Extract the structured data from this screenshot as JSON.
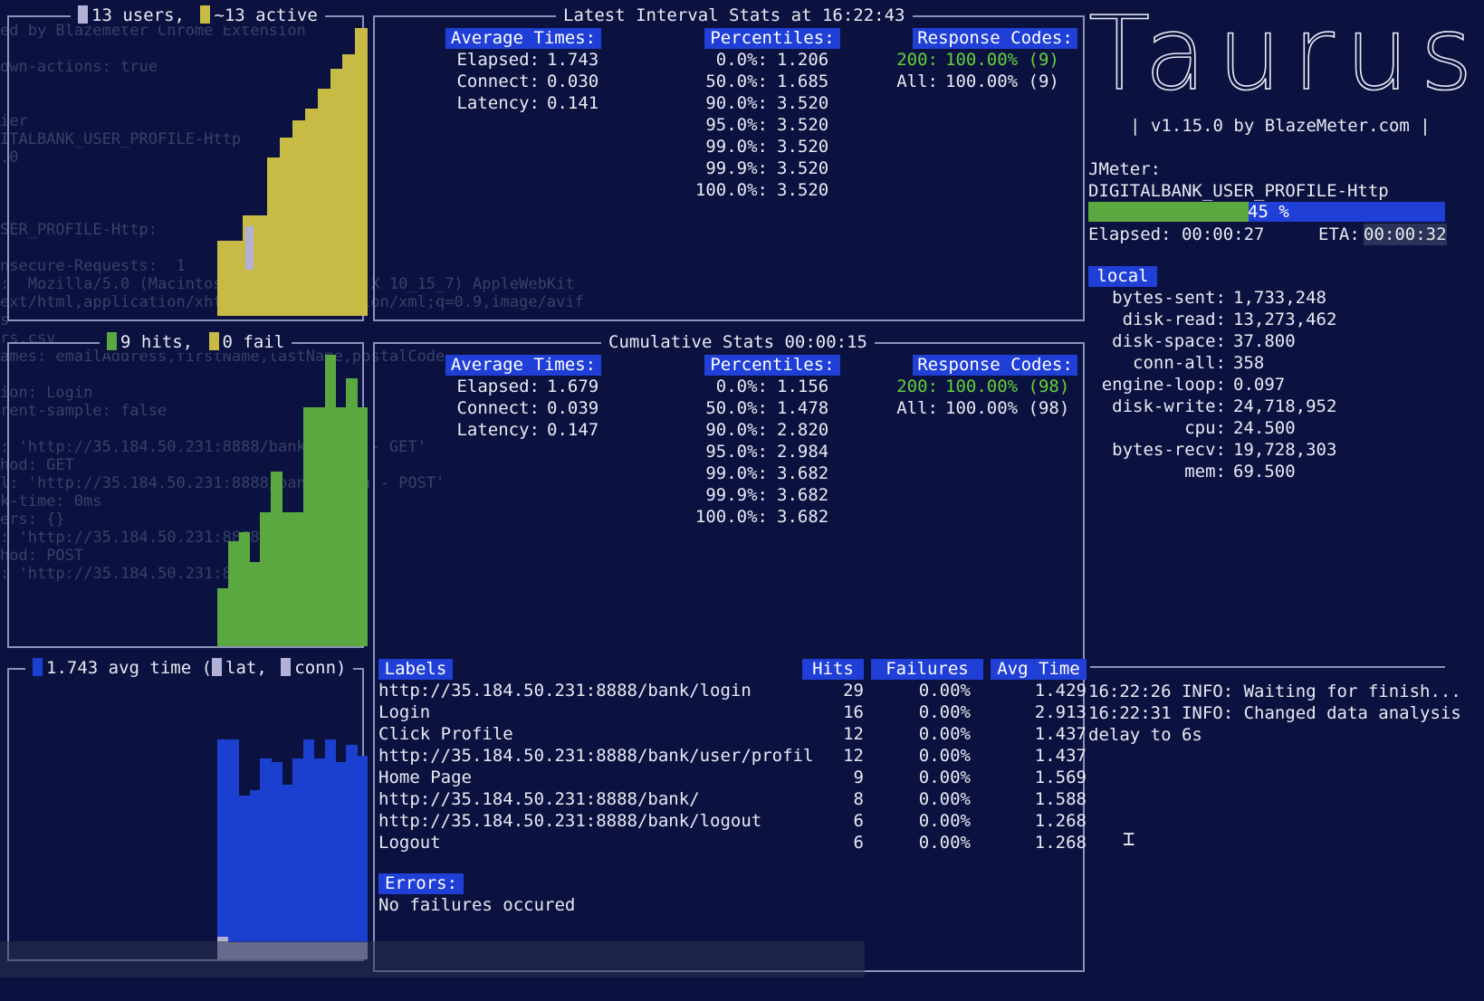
{
  "colors": {
    "users": "#c8bb45",
    "hits": "#5aa83f",
    "avg": "#1b3fce",
    "lat": "#b2b0d6",
    "accent": "#1f3fd6",
    "ok": "#62d23a"
  },
  "users_panel": {
    "title_users": "13 users,",
    "title_active": "~13 active",
    "bars": [
      {
        "level": 0.26,
        "color": "users"
      },
      {
        "level": 0.26,
        "color": "users"
      },
      {
        "level": 0.35,
        "color": "users"
      },
      {
        "level": 0.35,
        "color": "users"
      },
      {
        "level": 0.55,
        "color": "users"
      },
      {
        "level": 0.62,
        "color": "users"
      },
      {
        "level": 0.68,
        "color": "users"
      },
      {
        "level": 0.72,
        "color": "users"
      },
      {
        "level": 0.79,
        "color": "users"
      },
      {
        "level": 0.86,
        "color": "users"
      },
      {
        "level": 0.91,
        "color": "users"
      },
      {
        "level": 1.0,
        "color": "users"
      }
    ]
  },
  "hits_panel": {
    "title_hits": "9 hits,",
    "title_fail": "0 fail",
    "bars": [
      {
        "level": 0.2
      },
      {
        "level": 0.36
      },
      {
        "level": 0.39
      },
      {
        "level": 0.29
      },
      {
        "level": 0.46
      },
      {
        "level": 0.6
      },
      {
        "level": 0.46
      },
      {
        "level": 0.46
      },
      {
        "level": 0.82
      },
      {
        "level": 0.82
      },
      {
        "level": 1.0
      },
      {
        "level": 0.82
      },
      {
        "level": 0.92
      },
      {
        "level": 0.82
      }
    ]
  },
  "avg_panel": {
    "title_avg": "1.743 avg time (",
    "title_lat": "lat,",
    "title_conn": "conn)",
    "bars": [
      {
        "level": 0.78,
        "lat": 0.08
      },
      {
        "level": 0.78,
        "lat": 0.06
      },
      {
        "level": 0.58,
        "lat": 0.06
      },
      {
        "level": 0.6,
        "lat": 0.06
      },
      {
        "level": 0.71,
        "lat": 0.06
      },
      {
        "level": 0.7,
        "lat": 0.06
      },
      {
        "level": 0.62,
        "lat": 0.06
      },
      {
        "level": 0.71,
        "lat": 0.06
      },
      {
        "level": 0.78,
        "lat": 0.06
      },
      {
        "level": 0.71,
        "lat": 0.06
      },
      {
        "level": 0.78,
        "lat": 0.06
      },
      {
        "level": 0.7,
        "lat": 0.06
      },
      {
        "level": 0.76,
        "lat": 0.06
      },
      {
        "level": 0.72,
        "lat": 0.06
      }
    ]
  },
  "interval": {
    "title": "Latest Interval Stats at 16:22:43",
    "avg_header": "Average Times:",
    "pct_header": "Percentiles:",
    "codes_header": "Response Codes:",
    "avg_rows": [
      {
        "k": "Elapsed:",
        "v": "1.743"
      },
      {
        "k": "Connect:",
        "v": "0.030"
      },
      {
        "k": "Latency:",
        "v": "0.141"
      }
    ],
    "pct_rows": [
      {
        "k": "0.0%:",
        "v": "1.206"
      },
      {
        "k": "50.0%:",
        "v": "1.685"
      },
      {
        "k": "90.0%:",
        "v": "3.520"
      },
      {
        "k": "95.0%:",
        "v": "3.520"
      },
      {
        "k": "99.0%:",
        "v": "3.520"
      },
      {
        "k": "99.9%:",
        "v": "3.520"
      },
      {
        "k": "100.0%:",
        "v": "3.520"
      }
    ],
    "codes": [
      {
        "k": "200:",
        "v": "100.00% (9)"
      },
      {
        "k": "All:",
        "v": "100.00% (9)"
      }
    ]
  },
  "cumulative": {
    "title": "Cumulative Stats 00:00:15",
    "avg_header": "Average Times:",
    "pct_header": "Percentiles:",
    "codes_header": "Response Codes:",
    "avg_rows": [
      {
        "k": "Elapsed:",
        "v": "1.679"
      },
      {
        "k": "Connect:",
        "v": "0.039"
      },
      {
        "k": "Latency:",
        "v": "0.147"
      }
    ],
    "pct_rows": [
      {
        "k": "0.0%:",
        "v": "1.156"
      },
      {
        "k": "50.0%:",
        "v": "1.478"
      },
      {
        "k": "90.0%:",
        "v": "2.820"
      },
      {
        "k": "95.0%:",
        "v": "2.984"
      },
      {
        "k": "99.0%:",
        "v": "3.682"
      },
      {
        "k": "99.9%:",
        "v": "3.682"
      },
      {
        "k": "100.0%:",
        "v": "3.682"
      }
    ],
    "codes": [
      {
        "k": "200:",
        "v": "100.00% (98)"
      },
      {
        "k": "All:",
        "v": "100.00% (98)"
      }
    ],
    "labels_header": "Labels",
    "hits_header": "Hits",
    "fail_header": "Failures",
    "avgtime_header": "Avg Time",
    "rows": [
      {
        "label": "http://35.184.50.231:8888/bank/login",
        "hits": "29",
        "fail": "0.00%",
        "avg": "1.429"
      },
      {
        "label": "Login",
        "hits": "16",
        "fail": "0.00%",
        "avg": "2.913"
      },
      {
        "label": "Click Profile",
        "hits": "12",
        "fail": "0.00%",
        "avg": "1.437"
      },
      {
        "label": "http://35.184.50.231:8888/bank/user/profil",
        "hits": "12",
        "fail": "0.00%",
        "avg": "1.437"
      },
      {
        "label": "Home Page",
        "hits": "9",
        "fail": "0.00%",
        "avg": "1.569"
      },
      {
        "label": "http://35.184.50.231:8888/bank/",
        "hits": "8",
        "fail": "0.00%",
        "avg": "1.588"
      },
      {
        "label": "http://35.184.50.231:8888/bank/logout",
        "hits": "6",
        "fail": "0.00%",
        "avg": "1.268"
      },
      {
        "label": "Logout",
        "hits": "6",
        "fail": "0.00%",
        "avg": "1.268"
      }
    ],
    "errors_header": "Errors:",
    "errors_text": "No failures occured"
  },
  "side": {
    "logo": "Taurus",
    "version": "| v1.15.0 by BlazeMeter.com |",
    "tool": "JMeter:",
    "scenario": "DIGITALBANK_USER_PROFILE-Http",
    "progress": 0.45,
    "progress_text": "45 %",
    "elapsed": "Elapsed: 00:00:27",
    "eta_label": "ETA:",
    "eta": "00:00:32",
    "local_header": "local",
    "metrics": [
      {
        "k": "bytes-sent:",
        "v": "1,733,248"
      },
      {
        "k": "disk-read:",
        "v": "13,273,462"
      },
      {
        "k": "disk-space:",
        "v": "37.800"
      },
      {
        "k": "conn-all:",
        "v": "358"
      },
      {
        "k": "engine-loop:",
        "v": "0.097"
      },
      {
        "k": "disk-write:",
        "v": "24,718,952"
      },
      {
        "k": "cpu:",
        "v": "24.500"
      },
      {
        "k": "bytes-recv:",
        "v": "19,728,303"
      },
      {
        "k": "mem:",
        "v": "69.500"
      }
    ],
    "log": [
      "16:22:26 INFO: Waiting for finish...",
      "16:22:31 INFO: Changed data analysis",
      "delay to 6s"
    ]
  }
}
